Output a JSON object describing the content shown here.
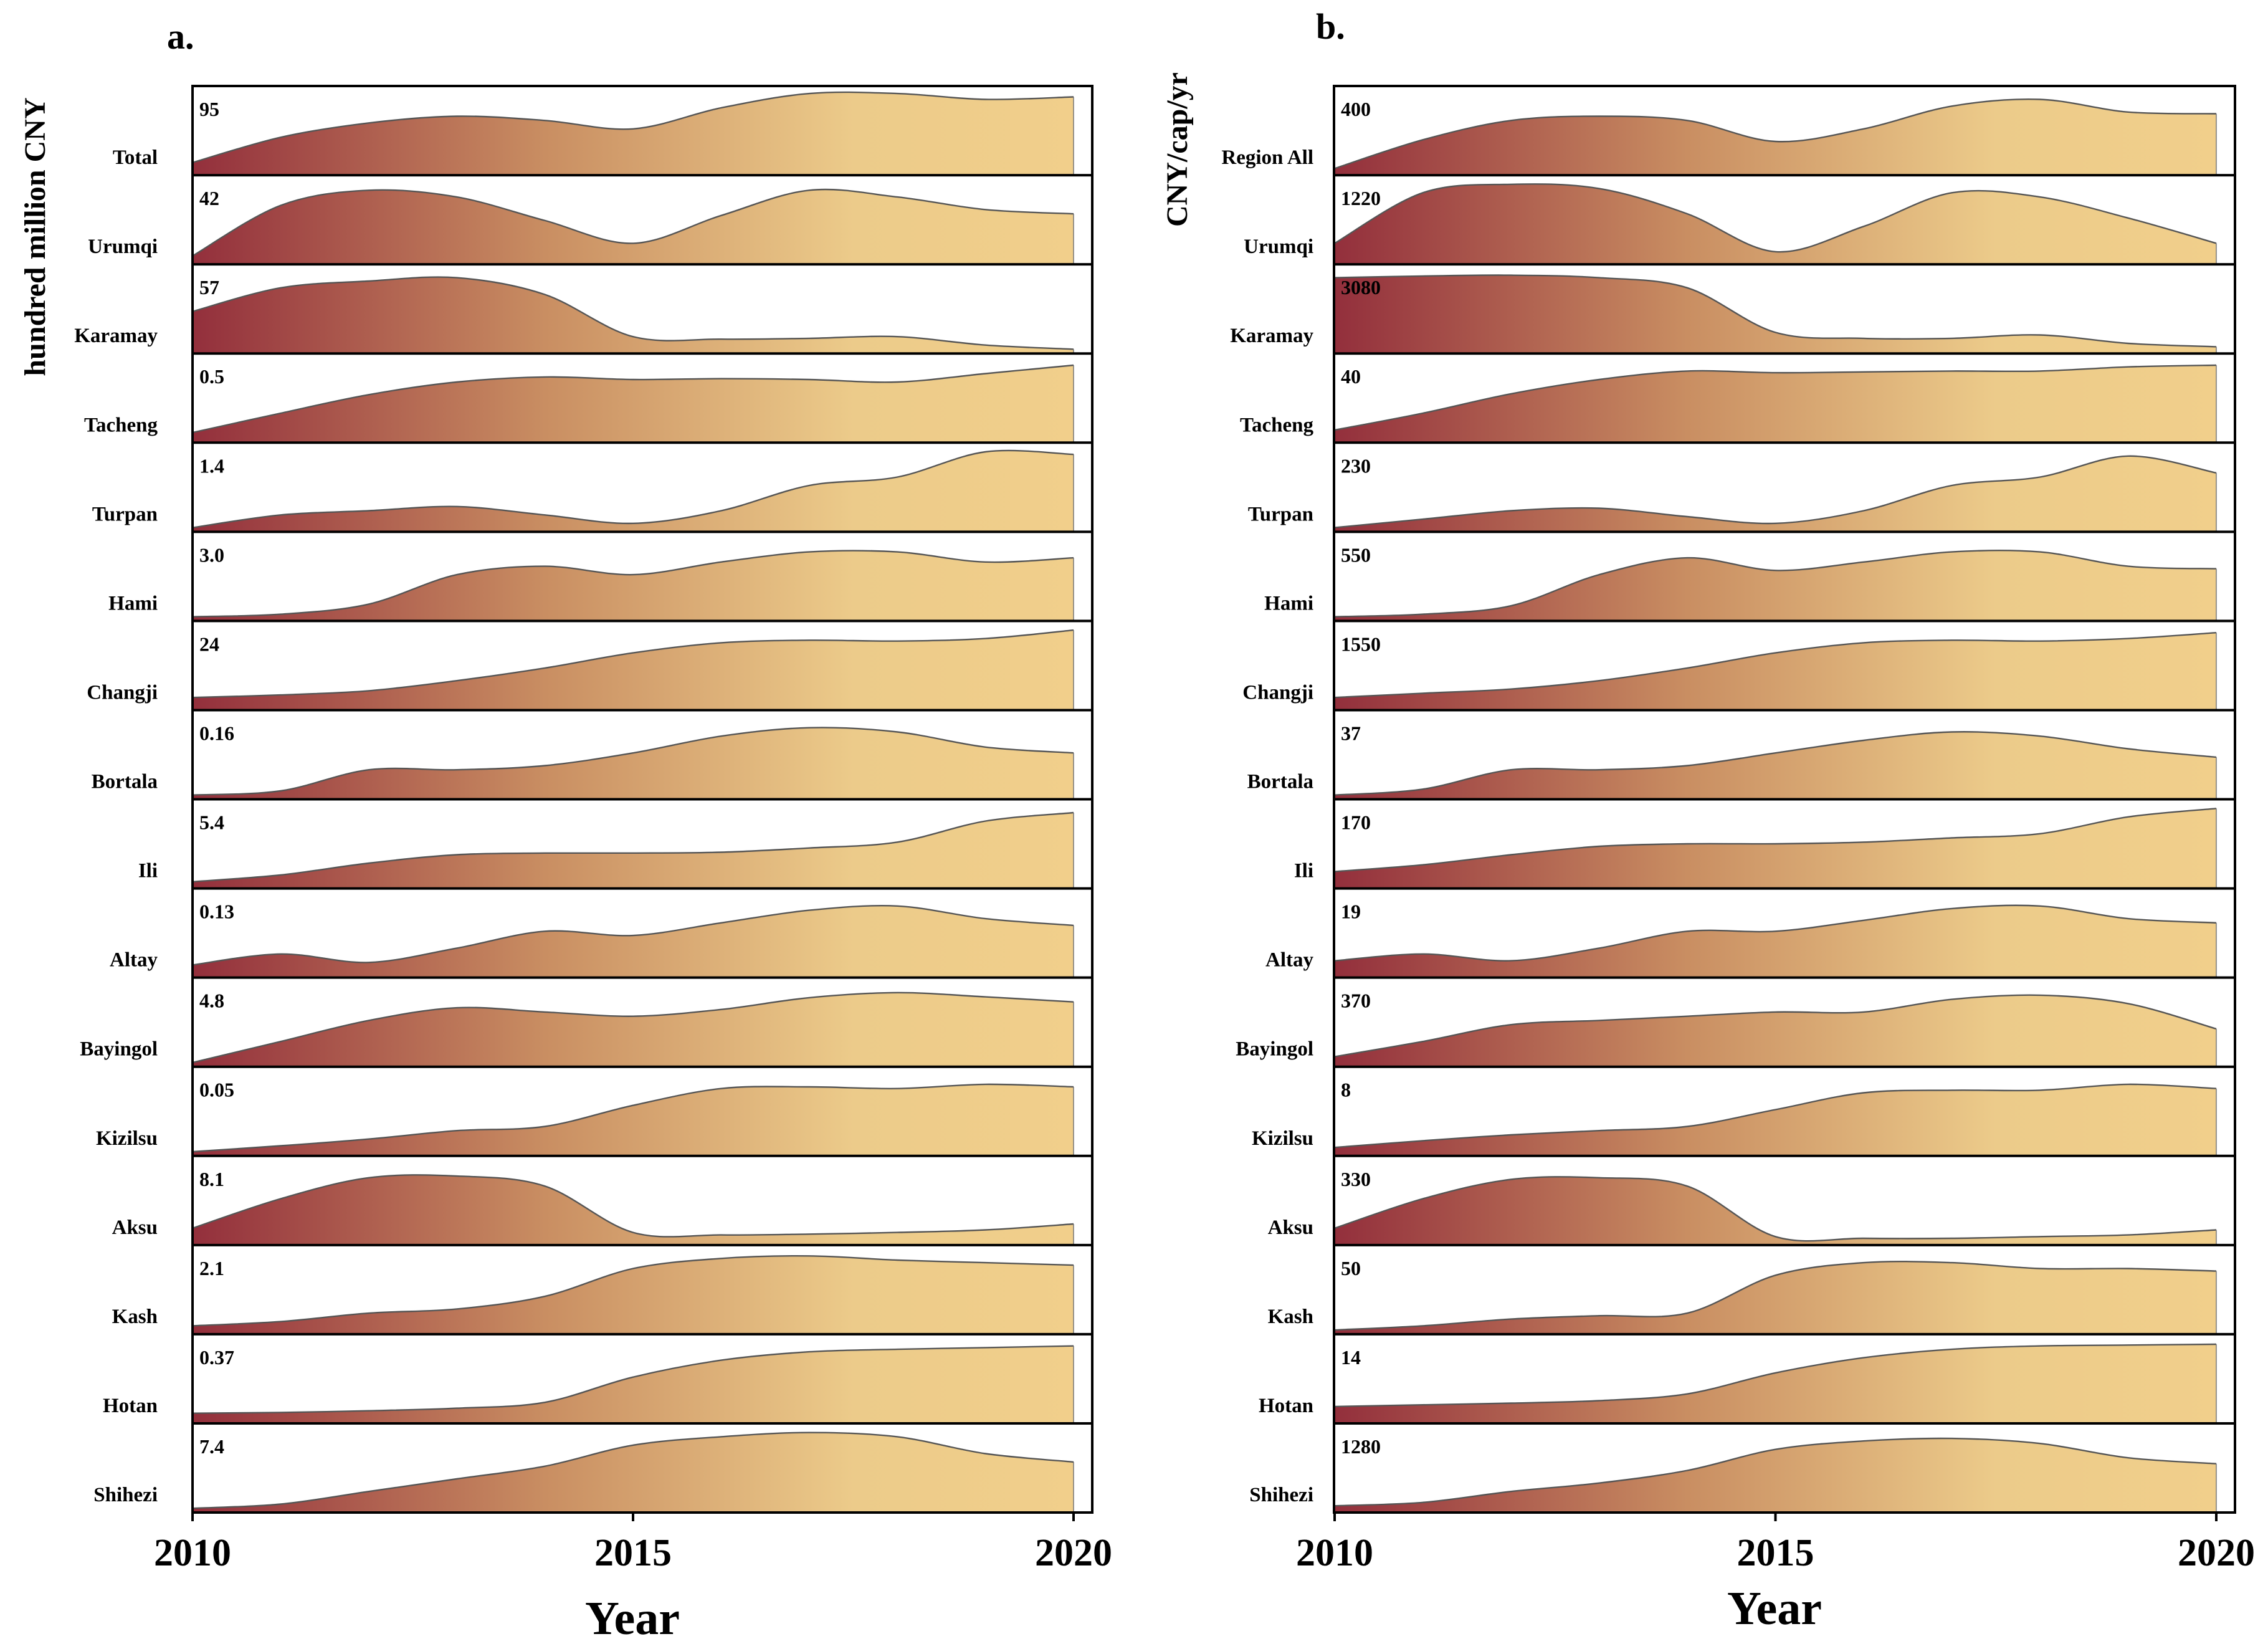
{
  "colors": {
    "gradient_start": "#932f3c",
    "gradient_mid": "#c98e62",
    "gradient_end": "#f1cf8b",
    "line": "#555555"
  },
  "chart_data": [
    {
      "type": "area",
      "panel_label": "a.",
      "title": "",
      "ylabel": "hundred million CNY",
      "xlabel": "Year",
      "x_range": [
        2010,
        2020
      ],
      "x_ticks": [
        "2010",
        "2015",
        "2020"
      ],
      "x": [
        2010,
        2011,
        2012,
        2013,
        2014,
        2015,
        2016,
        2017,
        2018,
        2019,
        2020
      ],
      "series": [
        {
          "name": "Total",
          "max_label": "95",
          "values": [
            0.15,
            0.45,
            0.62,
            0.7,
            0.65,
            0.55,
            0.8,
            0.97,
            0.97,
            0.9,
            0.93
          ]
        },
        {
          "name": "Urumqi",
          "max_label": "42",
          "values": [
            0.1,
            0.7,
            0.88,
            0.8,
            0.52,
            0.25,
            0.58,
            0.88,
            0.8,
            0.65,
            0.6
          ]
        },
        {
          "name": "Karamay",
          "max_label": "57",
          "values": [
            0.5,
            0.78,
            0.86,
            0.9,
            0.7,
            0.2,
            0.17,
            0.18,
            0.2,
            0.1,
            0.05
          ]
        },
        {
          "name": "Tacheng",
          "max_label": "0.5",
          "values": [
            0.12,
            0.35,
            0.57,
            0.72,
            0.78,
            0.75,
            0.76,
            0.75,
            0.72,
            0.82,
            0.92
          ]
        },
        {
          "name": "Turpan",
          "max_label": "1.4",
          "values": [
            0.05,
            0.2,
            0.25,
            0.3,
            0.2,
            0.1,
            0.25,
            0.55,
            0.65,
            0.95,
            0.92
          ]
        },
        {
          "name": "Hami",
          "max_label": "3.0",
          "values": [
            0.05,
            0.08,
            0.2,
            0.55,
            0.65,
            0.55,
            0.7,
            0.82,
            0.82,
            0.7,
            0.75
          ]
        },
        {
          "name": "Changji",
          "max_label": "24",
          "values": [
            0.15,
            0.18,
            0.23,
            0.35,
            0.5,
            0.68,
            0.8,
            0.83,
            0.82,
            0.85,
            0.95
          ]
        },
        {
          "name": "Bortala",
          "max_label": "0.16",
          "values": [
            0.05,
            0.1,
            0.35,
            0.35,
            0.4,
            0.55,
            0.75,
            0.85,
            0.8,
            0.62,
            0.55
          ]
        },
        {
          "name": "Ili",
          "max_label": "5.4",
          "values": [
            0.08,
            0.16,
            0.3,
            0.4,
            0.42,
            0.42,
            0.43,
            0.48,
            0.55,
            0.8,
            0.9
          ]
        },
        {
          "name": "Altay",
          "max_label": "0.13",
          "values": [
            0.15,
            0.28,
            0.18,
            0.35,
            0.55,
            0.5,
            0.65,
            0.8,
            0.85,
            0.7,
            0.62
          ]
        },
        {
          "name": "Bayingol",
          "max_label": "4.8",
          "values": [
            0.05,
            0.3,
            0.55,
            0.7,
            0.65,
            0.6,
            0.68,
            0.82,
            0.88,
            0.83,
            0.77
          ]
        },
        {
          "name": "Kizilsu",
          "max_label": "0.05",
          "values": [
            0.05,
            0.12,
            0.2,
            0.3,
            0.35,
            0.6,
            0.8,
            0.82,
            0.8,
            0.85,
            0.82
          ]
        },
        {
          "name": "Aksu",
          "max_label": "8.1",
          "values": [
            0.2,
            0.55,
            0.8,
            0.82,
            0.7,
            0.15,
            0.12,
            0.13,
            0.15,
            0.18,
            0.25
          ]
        },
        {
          "name": "Kash",
          "max_label": "2.1",
          "values": [
            0.1,
            0.15,
            0.25,
            0.3,
            0.45,
            0.78,
            0.9,
            0.93,
            0.88,
            0.85,
            0.82
          ]
        },
        {
          "name": "Hotan",
          "max_label": "0.37",
          "values": [
            0.12,
            0.13,
            0.15,
            0.18,
            0.25,
            0.55,
            0.75,
            0.85,
            0.88,
            0.9,
            0.92
          ]
        },
        {
          "name": "Shihezi",
          "max_label": "7.4",
          "values": [
            0.05,
            0.1,
            0.25,
            0.4,
            0.55,
            0.8,
            0.9,
            0.95,
            0.9,
            0.7,
            0.6
          ]
        }
      ]
    },
    {
      "type": "area",
      "panel_label": "b.",
      "title": "",
      "ylabel": "CNY/cap/yr",
      "xlabel": "Year",
      "x_range": [
        2010,
        2020
      ],
      "x_ticks": [
        "2010",
        "2015",
        "2020"
      ],
      "x": [
        2010,
        2011,
        2012,
        2013,
        2014,
        2015,
        2016,
        2017,
        2018,
        2019,
        2020
      ],
      "series": [
        {
          "name": "Region All",
          "max_label": "400",
          "values": [
            0.08,
            0.42,
            0.65,
            0.7,
            0.65,
            0.4,
            0.55,
            0.82,
            0.9,
            0.75,
            0.73
          ]
        },
        {
          "name": "Urumqi",
          "max_label": "1220",
          "values": [
            0.25,
            0.85,
            0.95,
            0.9,
            0.6,
            0.15,
            0.45,
            0.85,
            0.8,
            0.55,
            0.25
          ]
        },
        {
          "name": "Karamay",
          "max_label": "3080",
          "values": [
            0.9,
            0.92,
            0.93,
            0.9,
            0.78,
            0.25,
            0.18,
            0.18,
            0.22,
            0.12,
            0.08
          ]
        },
        {
          "name": "Tacheng",
          "max_label": "40",
          "values": [
            0.15,
            0.35,
            0.58,
            0.75,
            0.85,
            0.83,
            0.84,
            0.85,
            0.85,
            0.9,
            0.92
          ]
        },
        {
          "name": "Turpan",
          "max_label": "230",
          "values": [
            0.05,
            0.15,
            0.25,
            0.28,
            0.18,
            0.1,
            0.25,
            0.55,
            0.65,
            0.9,
            0.7
          ]
        },
        {
          "name": "Hami",
          "max_label": "550",
          "values": [
            0.05,
            0.08,
            0.18,
            0.55,
            0.75,
            0.6,
            0.7,
            0.82,
            0.82,
            0.65,
            0.62
          ]
        },
        {
          "name": "Changji",
          "max_label": "1550",
          "values": [
            0.15,
            0.2,
            0.25,
            0.35,
            0.5,
            0.68,
            0.8,
            0.83,
            0.82,
            0.85,
            0.92
          ]
        },
        {
          "name": "Bortala",
          "max_label": "37",
          "values": [
            0.05,
            0.12,
            0.35,
            0.35,
            0.4,
            0.55,
            0.7,
            0.8,
            0.75,
            0.6,
            0.5
          ]
        },
        {
          "name": "Ili",
          "max_label": "170",
          "values": [
            0.2,
            0.28,
            0.4,
            0.5,
            0.53,
            0.53,
            0.55,
            0.6,
            0.65,
            0.85,
            0.95
          ]
        },
        {
          "name": "Altay",
          "max_label": "19",
          "values": [
            0.2,
            0.28,
            0.2,
            0.35,
            0.55,
            0.55,
            0.68,
            0.82,
            0.85,
            0.7,
            0.65
          ]
        },
        {
          "name": "Bayingol",
          "max_label": "370",
          "values": [
            0.12,
            0.3,
            0.5,
            0.55,
            0.6,
            0.65,
            0.65,
            0.8,
            0.85,
            0.75,
            0.45
          ]
        },
        {
          "name": "Kizilsu",
          "max_label": "8",
          "values": [
            0.1,
            0.18,
            0.25,
            0.3,
            0.35,
            0.55,
            0.75,
            0.78,
            0.78,
            0.85,
            0.8
          ]
        },
        {
          "name": "Aksu",
          "max_label": "330",
          "values": [
            0.2,
            0.55,
            0.78,
            0.8,
            0.7,
            0.1,
            0.08,
            0.08,
            0.1,
            0.12,
            0.18
          ]
        },
        {
          "name": "Kash",
          "max_label": "50",
          "values": [
            0.05,
            0.1,
            0.18,
            0.22,
            0.25,
            0.7,
            0.85,
            0.85,
            0.78,
            0.78,
            0.75
          ]
        },
        {
          "name": "Hotan",
          "max_label": "14",
          "values": [
            0.2,
            0.22,
            0.24,
            0.27,
            0.35,
            0.6,
            0.78,
            0.88,
            0.92,
            0.93,
            0.94
          ]
        },
        {
          "name": "Shihezi",
          "max_label": "1280",
          "values": [
            0.08,
            0.12,
            0.25,
            0.35,
            0.5,
            0.75,
            0.85,
            0.88,
            0.82,
            0.65,
            0.58
          ]
        }
      ]
    }
  ]
}
